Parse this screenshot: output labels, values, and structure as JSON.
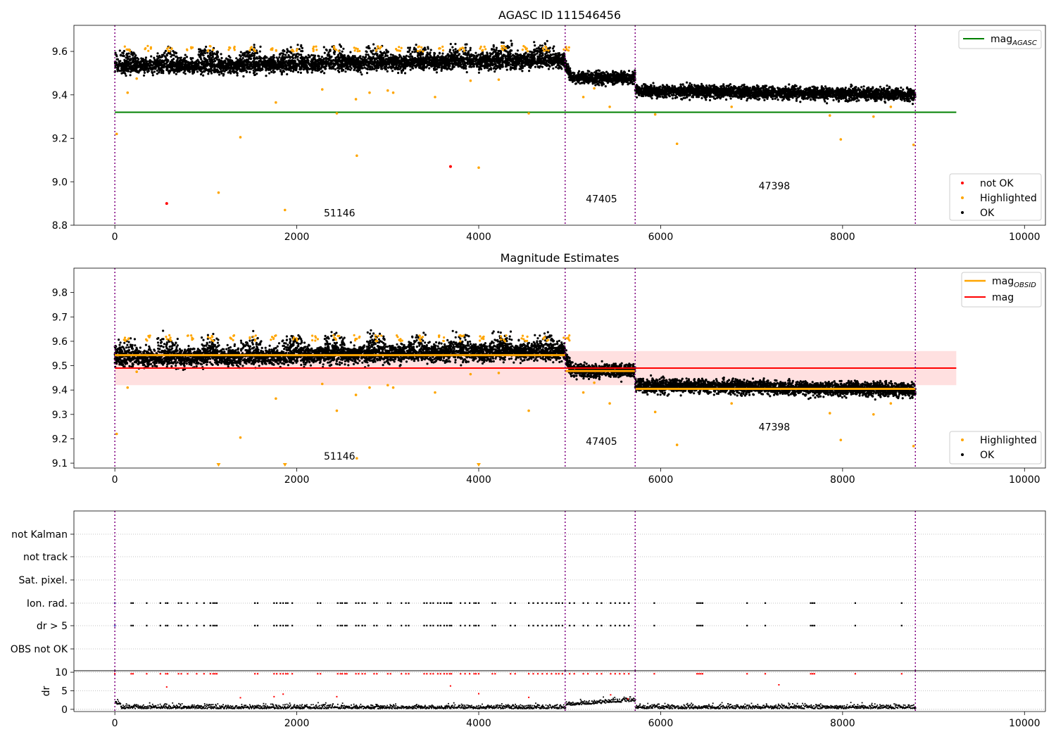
{
  "chart_data": [
    {
      "type": "scatter",
      "title": "AGASC ID 111546456",
      "xlim": [
        -450,
        10230
      ],
      "ylim": [
        8.8,
        9.72
      ],
      "x_ticks": [
        0,
        2000,
        4000,
        6000,
        8000,
        10000
      ],
      "y_ticks": [
        8.8,
        9.0,
        9.2,
        9.4,
        9.6
      ],
      "y_tick_labels": [
        "8.8",
        "9.0",
        "9.2",
        "9.4",
        "9.6"
      ],
      "obsid_boundaries": [
        0,
        4950,
        5720,
        8800
      ],
      "obsid_labels": [
        {
          "text": "51146",
          "x": 2470,
          "y": 8.84
        },
        {
          "text": "47405",
          "x": 5350,
          "y": 8.905
        },
        {
          "text": "47398",
          "x": 7250,
          "y": 8.965
        }
      ],
      "reference_lines": [
        {
          "name_base": "mag",
          "name_sub": "AGASC",
          "value": 9.32,
          "x_range": [
            0,
            9250
          ],
          "color": "#008000"
        }
      ],
      "segments": [
        {
          "x_start": 0,
          "x_end": 4950,
          "y_start": 9.53,
          "y_end": 9.56,
          "spread": 0.018
        },
        {
          "x_start": 4950,
          "x_end": 5720,
          "y_start": 9.48,
          "y_end": 9.48,
          "spread": 0.014
        },
        {
          "x_start": 5720,
          "x_end": 8800,
          "y_start": 9.42,
          "y_end": 9.4,
          "spread": 0.014
        }
      ],
      "series": [
        {
          "name": "not OK",
          "color": "#ff0000",
          "points": [
            [
              570,
              8.9
            ],
            [
              3690,
              9.07
            ]
          ]
        },
        {
          "name": "Highlighted",
          "color": "#ffa500",
          "points": [
            [
              20,
              9.22
            ],
            [
              140,
              9.41
            ],
            [
              240,
              9.475
            ],
            [
              1140,
              8.95
            ],
            [
              1380,
              9.205
            ],
            [
              1770,
              9.365
            ],
            [
              1870,
              8.87
            ],
            [
              2280,
              9.425
            ],
            [
              2440,
              9.315
            ],
            [
              2660,
              9.12
            ],
            [
              2650,
              9.38
            ],
            [
              2800,
              9.41
            ],
            [
              3000,
              9.42
            ],
            [
              3060,
              9.41
            ],
            [
              3520,
              9.39
            ],
            [
              4000,
              9.065
            ],
            [
              3910,
              9.465
            ],
            [
              4220,
              9.47
            ],
            [
              4550,
              9.315
            ],
            [
              5150,
              9.39
            ],
            [
              5270,
              9.43
            ],
            [
              5440,
              9.345
            ],
            [
              5940,
              9.31
            ],
            [
              6180,
              9.175
            ],
            [
              6780,
              9.345
            ],
            [
              7860,
              9.305
            ],
            [
              7980,
              9.195
            ],
            [
              8340,
              9.3
            ],
            [
              8530,
              9.345
            ],
            [
              8780,
              9.17
            ]
          ]
        },
        {
          "name": "OK",
          "color": "#000000"
        }
      ],
      "legends": [
        {
          "placement": "upper right",
          "entries": [
            "mag_AGASC"
          ]
        },
        {
          "placement": "lower right",
          "entries": [
            "not OK",
            "Highlighted",
            "OK"
          ]
        }
      ]
    },
    {
      "type": "scatter",
      "title": "Magnitude Estimates",
      "xlim": [
        -450,
        10230
      ],
      "ylim": [
        9.08,
        9.9
      ],
      "x_ticks": [
        0,
        2000,
        4000,
        6000,
        8000,
        10000
      ],
      "y_ticks": [
        9.1,
        9.2,
        9.3,
        9.4,
        9.5,
        9.6,
        9.7,
        9.8
      ],
      "y_tick_labels": [
        "9.1",
        "9.2",
        "9.3",
        "9.4",
        "9.5",
        "9.6",
        "9.7",
        "9.8"
      ],
      "obsid_boundaries": [
        0,
        4950,
        5720,
        8800
      ],
      "obsid_labels": [
        {
          "text": "51146",
          "x": 2470,
          "y": 9.115
        },
        {
          "text": "47405",
          "x": 5350,
          "y": 9.175
        },
        {
          "text": "47398",
          "x": 7250,
          "y": 9.235
        }
      ],
      "mag": {
        "name": "mag",
        "value": 9.49,
        "band": [
          9.42,
          9.56
        ],
        "x_range": [
          0,
          9250
        ],
        "color": "#ff0000"
      },
      "mag_obsid": {
        "name_base": "mag",
        "name_sub": "OBSID",
        "color": "#ffa500",
        "segments": [
          {
            "x_start": 0,
            "x_end": 4950,
            "value": 9.543
          },
          {
            "x_start": 4950,
            "x_end": 5720,
            "value": 9.478
          },
          {
            "x_start": 5720,
            "x_end": 8800,
            "value": 9.405
          }
        ]
      },
      "segments": [
        {
          "x_start": 0,
          "x_end": 4950,
          "y_start": 9.53,
          "y_end": 9.56,
          "spread": 0.018
        },
        {
          "x_start": 4950,
          "x_end": 5720,
          "y_start": 9.48,
          "y_end": 9.48,
          "spread": 0.014
        },
        {
          "x_start": 5720,
          "x_end": 8800,
          "y_start": 9.42,
          "y_end": 9.4,
          "spread": 0.014
        }
      ],
      "highlighted_points": [
        [
          20,
          9.22
        ],
        [
          140,
          9.41
        ],
        [
          240,
          9.475
        ],
        [
          1380,
          9.205
        ],
        [
          1770,
          9.365
        ],
        [
          2280,
          9.425
        ],
        [
          2440,
          9.315
        ],
        [
          2660,
          9.12
        ],
        [
          2650,
          9.38
        ],
        [
          2800,
          9.41
        ],
        [
          3000,
          9.42
        ],
        [
          3060,
          9.41
        ],
        [
          3520,
          9.39
        ],
        [
          3910,
          9.465
        ],
        [
          4220,
          9.47
        ],
        [
          4550,
          9.315
        ],
        [
          5150,
          9.39
        ],
        [
          5270,
          9.43
        ],
        [
          5440,
          9.345
        ],
        [
          5940,
          9.31
        ],
        [
          6180,
          9.175
        ],
        [
          6780,
          9.345
        ],
        [
          7860,
          9.305
        ],
        [
          7980,
          9.195
        ],
        [
          8340,
          9.3
        ],
        [
          8530,
          9.345
        ],
        [
          8780,
          9.17
        ]
      ],
      "offscale_markers": [
        1140,
        1870,
        4000
      ],
      "legends": [
        {
          "placement": "upper right",
          "entries": [
            "mag_OBSID",
            "mag"
          ]
        },
        {
          "placement": "lower right",
          "entries": [
            "Highlighted",
            "OK"
          ]
        }
      ]
    },
    {
      "type": "scatter",
      "title": "",
      "xlim": [
        -450,
        10230
      ],
      "obsid_boundaries": [
        0,
        4950,
        5720,
        8800
      ],
      "flag_rows": [
        "not Kalman",
        "not track",
        "Sat. pixel.",
        "Ion. rad.",
        "dr > 5",
        "OBS not OK"
      ],
      "flag_x": [
        0,
        180,
        200,
        350,
        500,
        560,
        580,
        700,
        730,
        800,
        900,
        980,
        1050,
        1080,
        1100,
        1120,
        1540,
        1570,
        1750,
        1780,
        1820,
        1850,
        1880,
        1900,
        1950,
        2230,
        2260,
        2450,
        2480,
        2500,
        2530,
        2550,
        2650,
        2680,
        2720,
        2750,
        2850,
        2880,
        3000,
        3030,
        3150,
        3200,
        3230,
        3400,
        3430,
        3470,
        3500,
        3550,
        3580,
        3620,
        3650,
        3680,
        3700,
        3800,
        3850,
        3900,
        3950,
        3970,
        4000,
        4150,
        4180,
        4350,
        4400,
        4550,
        4600,
        4650,
        4700,
        4750,
        4800,
        4850,
        4880,
        4920,
        5000,
        5050,
        5150,
        5200,
        5300,
        5350,
        5450,
        5500,
        5550,
        5600,
        5650,
        5930,
        6400,
        6420,
        6440,
        6460,
        6950,
        7150,
        7650,
        7670,
        7690,
        8140,
        8650
      ],
      "ion_only_x": [
        3690
      ],
      "dr_panel": {
        "ylabel": "dr",
        "ylim": [
          -0.6,
          10.4
        ],
        "y_ticks": [
          0,
          5,
          10
        ],
        "y_tick_labels": [
          "0",
          "5",
          "10"
        ],
        "threshold": 5,
        "high_points": [
          [
            570,
            6.2
          ],
          [
            1380,
            3.3
          ],
          [
            1750,
            3.6
          ],
          [
            1850,
            4.3
          ],
          [
            2440,
            3.6
          ],
          [
            3690,
            6.5
          ],
          [
            4000,
            4.4
          ],
          [
            4550,
            3.4
          ],
          [
            5450,
            4.1
          ],
          [
            5640,
            3.0
          ],
          [
            7300,
            6.8
          ]
        ]
      }
    }
  ]
}
